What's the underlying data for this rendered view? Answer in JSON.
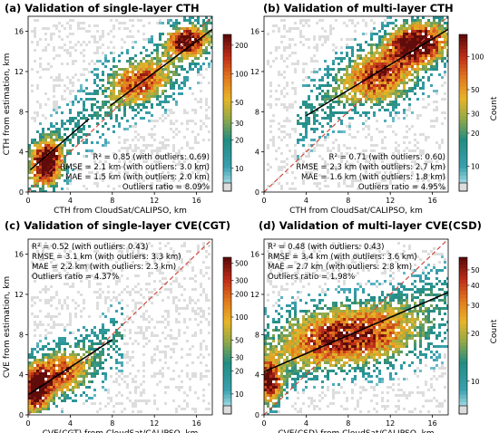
{
  "chart_data": [
    {
      "type": "heatmap",
      "label": "(a) Validation of single-layer CTH",
      "title": "Validation of single-layer CTH",
      "xlabel": "CTH from CloudSat/CALIPSO, km",
      "ylabel": "CTH from estimation, km",
      "xlim": [
        0,
        17.5
      ],
      "ylim": [
        0,
        17.5
      ],
      "xticks": [
        "0",
        "4",
        "8",
        "12",
        "16"
      ],
      "yticks": [
        "0",
        "4",
        "8",
        "12",
        "16"
      ],
      "stats": [
        "R² = 0.85 (with outliers: 0.69)",
        "RMSE = 2.1 km (with outliers: 3.0 km)",
        "MAE = 1.5 km (with outliers: 2.0 km)",
        "Outliers ratio = 8.09%"
      ],
      "stats_position": "bottom-right",
      "colorbar": {
        "ticks": [
          10,
          20,
          30,
          50,
          100,
          200
        ],
        "min": 7,
        "max": 260,
        "scale": "log",
        "label": ""
      },
      "fit_segments": [
        {
          "x": [
            0.2,
            5.8
          ],
          "y": [
            2.2,
            7.3
          ]
        },
        {
          "x": [
            7.8,
            17.5
          ],
          "y": [
            8.6,
            16.2
          ]
        }
      ],
      "hotspots": [
        {
          "x": 1.8,
          "y": 2.8,
          "sx": 1.0,
          "sy": 1.6,
          "w": 1.0
        },
        {
          "x": 15.0,
          "y": 15.0,
          "sx": 1.3,
          "sy": 1.0,
          "w": 0.9
        },
        {
          "x": 10.5,
          "y": 11.0,
          "sx": 2.2,
          "sy": 1.6,
          "w": 0.55
        }
      ]
    },
    {
      "type": "heatmap",
      "label": "(b) Validation of multi-layer CTH",
      "title": "Validation of multi-layer CTH",
      "xlabel": "CTH from CloudSat/CALIPSO, km",
      "ylabel": "",
      "xlim": [
        0,
        17.5
      ],
      "ylim": [
        0,
        17.5
      ],
      "xticks": [
        "0",
        "4",
        "8",
        "12",
        "16"
      ],
      "yticks": [
        "0",
        "4",
        "8",
        "12",
        "16"
      ],
      "stats": [
        "R² = 0.71 (with outliers: 0.60)",
        "RMSE = 2.3 km (with outliers: 2.7 km)",
        "MAE = 1.6 km (with outliers: 1.8 km)",
        "Outliers ratio = 4.95%"
      ],
      "stats_position": "bottom-right",
      "colorbar": {
        "ticks": [
          10,
          20,
          30,
          50,
          100
        ],
        "min": 7,
        "max": 160,
        "scale": "log",
        "label": "Count"
      },
      "fit_segments": [
        {
          "x": [
            4.0,
            17.5
          ],
          "y": [
            7.6,
            16.2
          ]
        }
      ],
      "hotspots": [
        {
          "x": 14.5,
          "y": 14.8,
          "sx": 1.8,
          "sy": 1.3,
          "w": 1.0
        },
        {
          "x": 11.0,
          "y": 11.3,
          "sx": 2.5,
          "sy": 2.0,
          "w": 0.6
        }
      ]
    },
    {
      "type": "heatmap",
      "label": "(c) Validation of single-layer CVE(CGT)",
      "title": "Validation of single-layer CVE(CGT)",
      "xlabel": "CVE(CGT) from CloudSat/CALIPSO, km",
      "ylabel": "CVE from estimation, km",
      "xlim": [
        0,
        17.5
      ],
      "ylim": [
        0,
        17.5
      ],
      "xticks": [
        "0",
        "4",
        "8",
        "12",
        "16"
      ],
      "yticks": [
        "0",
        "4",
        "8",
        "12",
        "16"
      ],
      "stats": [
        "R² = 0.52 (with outliers: 0.43)",
        "RMSE = 3.1 km (with outliers: 3.3 km)",
        "MAE = 2.2 km (with outliers: 2.3 km)",
        "Outliers ratio = 4.37%"
      ],
      "stats_position": "top-left",
      "colorbar": {
        "ticks": [
          10,
          20,
          30,
          50,
          100,
          200,
          300,
          500
        ],
        "min": 7,
        "max": 600,
        "scale": "log",
        "label": ""
      },
      "fit_segments": [
        {
          "x": [
            0,
            8.0
          ],
          "y": [
            2.0,
            7.5
          ]
        }
      ],
      "hotspots": [
        {
          "x": 0.8,
          "y": 2.5,
          "sx": 0.8,
          "sy": 1.4,
          "w": 1.0
        },
        {
          "x": 3.0,
          "y": 4.2,
          "sx": 2.0,
          "sy": 1.6,
          "w": 0.55
        }
      ]
    },
    {
      "type": "heatmap",
      "label": "(d) Validation of multi-layer CVE(CSD)",
      "title": "Validation of multi-layer CVE(CSD)",
      "xlabel": "CVE(CSD) from CloudSat/CALIPSO, km",
      "ylabel": "",
      "xlim": [
        0,
        17.5
      ],
      "ylim": [
        0,
        17.5
      ],
      "xticks": [
        "0",
        "4",
        "8",
        "12",
        "16"
      ],
      "yticks": [
        "0",
        "4",
        "8",
        "12",
        "16"
      ],
      "stats": [
        "R² = 0.48 (with outliers: 0.43)",
        "RMSE = 3.4 km (with outliers: 3.6 km)",
        "MAE = 2.7 km (with outliers: 2.8 km)",
        "Outliers ratio = 1.98%"
      ],
      "stats_position": "top-left",
      "colorbar": {
        "ticks": [
          10,
          20,
          30,
          40,
          50
        ],
        "min": 7,
        "max": 60,
        "scale": "log",
        "label": "Count"
      },
      "fit_segments": [
        {
          "x": [
            0,
            17.5
          ],
          "y": [
            4.3,
            12.2
          ]
        }
      ],
      "hotspots": [
        {
          "x": 0.6,
          "y": 3.2,
          "sx": 0.7,
          "sy": 1.5,
          "w": 0.9
        },
        {
          "x": 8.0,
          "y": 7.8,
          "sx": 5.0,
          "sy": 2.2,
          "w": 0.7
        }
      ]
    }
  ]
}
